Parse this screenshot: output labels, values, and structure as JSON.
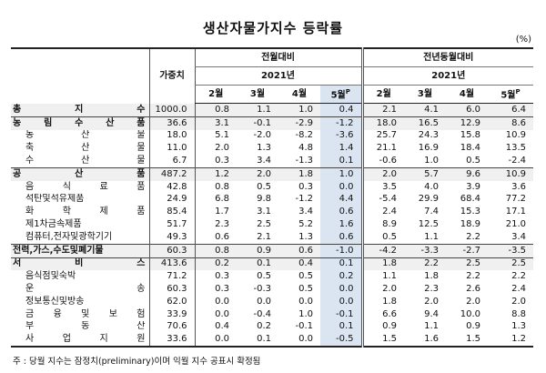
{
  "title": "생산자물가지수 등락률",
  "unit": "(%)",
  "header": {
    "weight": "가중치",
    "mom": "전월대비",
    "yoy": "전년동월대비",
    "year": "2021년",
    "months": [
      "2월",
      "3월",
      "4월",
      "5월"
    ],
    "prelim_mark": "P"
  },
  "rows": [
    {
      "label": "총 지 수",
      "kind": "main",
      "weight": "1000.0",
      "mom": [
        "0.8",
        "1.1",
        "1.0",
        "0.4"
      ],
      "yoy": [
        "2.1",
        "4.1",
        "6.0",
        "6.4"
      ]
    },
    {
      "label": "농 림 수 산 품",
      "kind": "main",
      "weight": "36.6",
      "mom": [
        "3.1",
        "-0.1",
        "-2.9",
        "-1.2"
      ],
      "yoy": [
        "18.0",
        "16.5",
        "12.9",
        "8.6"
      ]
    },
    {
      "label": "농 산 물",
      "kind": "sub",
      "weight": "18.0",
      "mom": [
        "5.1",
        "-2.0",
        "-8.2",
        "-3.6"
      ],
      "yoy": [
        "25.7",
        "24.3",
        "15.8",
        "10.9"
      ]
    },
    {
      "label": "축 산 물",
      "kind": "sub",
      "weight": "11.0",
      "mom": [
        "2.0",
        "1.3",
        "4.8",
        "1.4"
      ],
      "yoy": [
        "21.1",
        "16.9",
        "18.4",
        "13.5"
      ]
    },
    {
      "label": "수 산 물",
      "kind": "sub",
      "weight": "6.7",
      "mom": [
        "0.3",
        "3.4",
        "-1.3",
        "0.1"
      ],
      "yoy": [
        "-0.6",
        "1.0",
        "0.5",
        "-2.4"
      ]
    },
    {
      "label": "공 산 품",
      "kind": "main",
      "weight": "487.2",
      "mom": [
        "1.2",
        "2.0",
        "1.8",
        "1.0"
      ],
      "yoy": [
        "2.0",
        "5.7",
        "9.6",
        "10.9"
      ]
    },
    {
      "label": "음 식 료 품",
      "kind": "sub",
      "weight": "42.8",
      "mom": [
        "0.8",
        "0.5",
        "0.3",
        "0.0"
      ],
      "yoy": [
        "3.5",
        "4.0",
        "3.9",
        "3.6"
      ]
    },
    {
      "label": "석탄및석유제품",
      "kind": "sub",
      "weight": "24.9",
      "mom": [
        "6.8",
        "9.8",
        "-1.2",
        "4.4"
      ],
      "yoy": [
        "-5.4",
        "29.9",
        "68.4",
        "77.2"
      ]
    },
    {
      "label": "화 학 제 품",
      "kind": "sub",
      "weight": "85.4",
      "mom": [
        "1.7",
        "3.1",
        "3.4",
        "0.6"
      ],
      "yoy": [
        "2.4",
        "7.4",
        "15.3",
        "17.1"
      ]
    },
    {
      "label": "제1차금속제품",
      "kind": "sub",
      "weight": "51.7",
      "mom": [
        "2.3",
        "2.5",
        "5.2",
        "1.6"
      ],
      "yoy": [
        "8.9",
        "12.5",
        "18.9",
        "21.0"
      ]
    },
    {
      "label": "컴퓨터,전자및광학기기",
      "kind": "sub",
      "weight": "49.3",
      "mom": [
        "0.6",
        "2.1",
        "1.3",
        "0.6"
      ],
      "yoy": [
        "0.5",
        "1.1",
        "2.2",
        "3.4"
      ]
    },
    {
      "label": "전력,가스,수도및폐기물",
      "kind": "main",
      "weight": "60.3",
      "mom": [
        "0.8",
        "0.9",
        "0.6",
        "-1.0"
      ],
      "yoy": [
        "-4.2",
        "-3.3",
        "-2.7",
        "-3.5"
      ]
    },
    {
      "label": "서 비 스",
      "kind": "main",
      "weight": "413.6",
      "mom": [
        "0.2",
        "0.1",
        "0.4",
        "0.1"
      ],
      "yoy": [
        "1.8",
        "2.2",
        "2.5",
        "2.5"
      ]
    },
    {
      "label": "음식점및숙박",
      "kind": "sub",
      "weight": "71.2",
      "mom": [
        "0.3",
        "0.5",
        "0.5",
        "0.2"
      ],
      "yoy": [
        "1.1",
        "1.8",
        "2.2",
        "2.2"
      ]
    },
    {
      "label": "운 송",
      "kind": "sub",
      "weight": "60.3",
      "mom": [
        "0.3",
        "-0.3",
        "0.5",
        "0.0"
      ],
      "yoy": [
        "2.0",
        "2.3",
        "2.6",
        "2.4"
      ]
    },
    {
      "label": "정보통신및방송",
      "kind": "sub",
      "weight": "62.0",
      "mom": [
        "0.0",
        "0.0",
        "0.0",
        "0.0"
      ],
      "yoy": [
        "1.8",
        "2.0",
        "2.0",
        "2.0"
      ]
    },
    {
      "label": "금 융 및 보 험",
      "kind": "sub",
      "weight": "33.9",
      "mom": [
        "0.0",
        "-0.4",
        "1.0",
        "-0.1"
      ],
      "yoy": [
        "6.6",
        "9.4",
        "10.0",
        "8.8"
      ]
    },
    {
      "label": "부 동 산",
      "kind": "sub",
      "weight": "70.6",
      "mom": [
        "0.4",
        "0.2",
        "-0.1",
        "0.1"
      ],
      "yoy": [
        "0.9",
        "1.1",
        "0.9",
        "1.3"
      ]
    },
    {
      "label": "사 업 지 원",
      "kind": "sub",
      "weight": "33.6",
      "mom": [
        "0.0",
        "0.1",
        "0.0",
        "-0.5"
      ],
      "yoy": [
        "1.5",
        "1.6",
        "1.5",
        "1.2"
      ]
    }
  ],
  "note": "주 : 당월 지수는 잠정치(preliminary)이며 익월 지수 공표시 확정됨"
}
